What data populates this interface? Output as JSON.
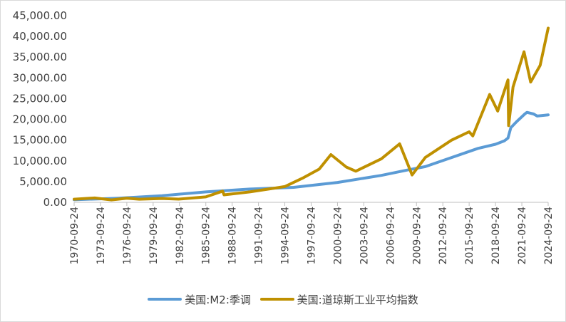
{
  "chart_data": {
    "type": "line",
    "title": "",
    "xlabel": "",
    "ylabel": "",
    "ylim": [
      0,
      45000
    ],
    "y_ticks": [
      "0.00",
      "5,000.00",
      "10,000.00",
      "15,000.00",
      "20,000.00",
      "25,000.00",
      "30,000.00",
      "35,000.00",
      "40,000.00",
      "45,000.00"
    ],
    "x_ticks": [
      "1970-09-24",
      "1973-09-24",
      "1976-09-24",
      "1979-09-24",
      "1982-09-24",
      "1985-09-24",
      "1988-09-24",
      "1991-09-24",
      "1994-09-24",
      "1997-09-24",
      "2000-09-24",
      "2003-09-24",
      "2006-09-24",
      "2009-09-24",
      "2012-09-24",
      "2015-09-24",
      "2018-09-24",
      "2021-09-24",
      "2024-09-24"
    ],
    "xlim": [
      "1970-09-24",
      "2024-09-24"
    ],
    "grid": false,
    "legend_position": "bottom",
    "series": [
      {
        "name": "美国:M2:季调",
        "color": "#5b9bd5",
        "x": [
          "1970-09-24",
          "1975-09-24",
          "1980-09-24",
          "1985-09-24",
          "1990-09-24",
          "1995-09-24",
          "2000-09-24",
          "2005-09-24",
          "2008-09-24",
          "2010-09-24",
          "2013-09-24",
          "2016-09-24",
          "2018-09-24",
          "2019-09-24",
          "2020-02-24",
          "2020-06-24",
          "2021-01-24",
          "2022-01-24",
          "2022-04-24",
          "2023-01-24",
          "2023-06-24",
          "2024-09-24"
        ],
        "values": [
          620,
          1000,
          1600,
          2500,
          3200,
          3600,
          4800,
          6500,
          7800,
          8600,
          10800,
          13000,
          14000,
          14800,
          15500,
          18000,
          19300,
          21300,
          21700,
          21300,
          20800,
          21100
        ]
      },
      {
        "name": "美国:道琼斯工业平均指数",
        "color": "#bf9000",
        "x": [
          "1970-09-24",
          "1973-01-24",
          "1974-12-24",
          "1976-09-24",
          "1978-02-24",
          "1980-09-24",
          "1982-08-24",
          "1985-09-24",
          "1987-08-24",
          "1987-10-24",
          "1990-09-24",
          "1994-09-24",
          "1996-09-24",
          "1998-08-24",
          "1999-12-24",
          "2001-09-24",
          "2002-10-24",
          "2005-09-24",
          "2007-10-24",
          "2009-03-24",
          "2010-09-24",
          "2013-09-24",
          "2015-09-24",
          "2016-02-24",
          "2018-01-24",
          "2018-12-24",
          "2020-02-24",
          "2020-03-24",
          "2020-09-24",
          "2021-12-24",
          "2022-09-24",
          "2023-10-24",
          "2024-09-24"
        ],
        "values": [
          760,
          1050,
          580,
          990,
          750,
          930,
          780,
          1300,
          2700,
          1800,
          2500,
          3800,
          5800,
          8000,
          11500,
          8500,
          7500,
          10500,
          14100,
          6600,
          10800,
          15000,
          17000,
          16000,
          26000,
          22000,
          29500,
          18500,
          27800,
          36300,
          29000,
          33000,
          42000
        ]
      }
    ]
  }
}
